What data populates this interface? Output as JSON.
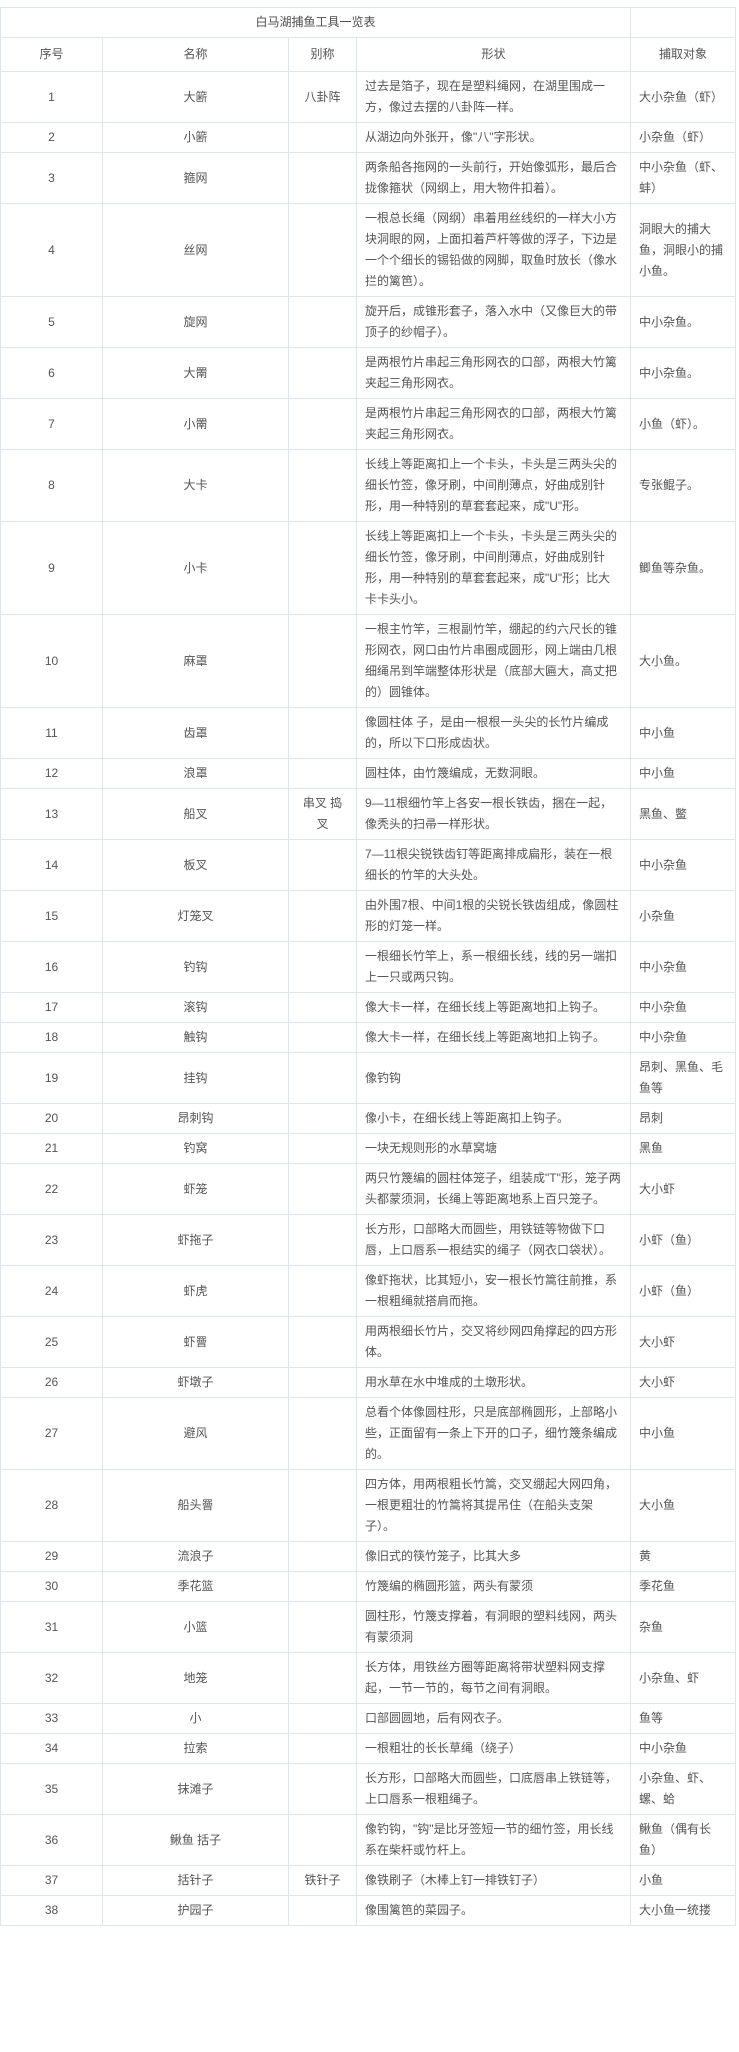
{
  "table": {
    "title": "白马湖捕鱼工具一览表",
    "columns": [
      "序号",
      "名称",
      "别称",
      "形状",
      "捕取对象"
    ],
    "rows": [
      {
        "no": "1",
        "name": "大簖",
        "alias": "八卦阵",
        "shape": "过去是箔子，现在是塑料绳网，在湖里围成一方，像过去摆的八卦阵一样。",
        "target": "大小杂鱼（虾）"
      },
      {
        "no": "2",
        "name": "小簖",
        "alias": "",
        "shape": "从湖边向外张开，像\"八\"字形状。",
        "target": "小杂鱼（虾）"
      },
      {
        "no": "3",
        "name": "箍网",
        "alias": "",
        "shape": "两条船各拖网的一头前行，开始像弧形，最后合拢像箍状（网纲上，用大物件扣着）。",
        "target": "中小杂鱼（虾、蚌）"
      },
      {
        "no": "4",
        "name": "丝网",
        "alias": "",
        "shape": "一根总长绳（网纲）串着用丝线织的一样大小方块洞眼的网，上面扣着芦杆等做的浮子，下边是一个个细长的锡铅做的网脚，取鱼时放长（像水拦的篱笆）。",
        "target": "洞眼大的捕大鱼，洞眼小的捕小鱼。"
      },
      {
        "no": "5",
        "name": "旋网",
        "alias": "",
        "shape": "旋开后，成锥形套子，落入水中（又像巨大的带顶子的纱帽子）。",
        "target": "中小杂鱼。"
      },
      {
        "no": "6",
        "name": "大罱",
        "alias": "",
        "shape": "是两根竹片串起三角形网衣的口部，两根大竹篱夹起三角形网衣。",
        "target": "中小杂鱼。"
      },
      {
        "no": "7",
        "name": "小罱",
        "alias": "",
        "shape": "是两根竹片串起三角形网衣的口部，两根大竹篱夹起三角形网衣。",
        "target": "小鱼（虾）。"
      },
      {
        "no": "8",
        "name": "大卡",
        "alias": "",
        "shape": "长线上等距离扣上一个卡头，卡头是三两头尖的细长竹签，像牙刷，中间削薄点，好曲成别针形，用一种特别的草套套起来，成\"U\"形。",
        "target": "专张鲲子。"
      },
      {
        "no": "9",
        "name": "小卡",
        "alias": "",
        "shape": "长线上等距离扣上一个卡头，卡头是三两头尖的细长竹签，像牙刷，中间削薄点，好曲成别针形，用一种特别的草套套起来，成\"U\"形；比大卡卡头小。",
        "target": "鲫鱼等杂鱼。"
      },
      {
        "no": "10",
        "name": "麻罩",
        "alias": "",
        "shape": "一根主竹竿，三根副竹竿，绷起的约六尺长的锥形网衣，网口由竹片串圈成圆形，网上端由几根细绳吊到竿端整体形状是（底部大匾大，高丈把的）圆锥体。",
        "target": "大小鱼。"
      },
      {
        "no": "11",
        "name": "齿罩",
        "alias": "",
        "shape": "像圆柱体 子，是由一根根一头尖的长竹片编成的，所以下口形成齿状。",
        "target": "中小鱼"
      },
      {
        "no": "12",
        "name": "浪罩",
        "alias": "",
        "shape": "圆柱体，由竹篾编成，无数洞眼。",
        "target": "中小鱼"
      },
      {
        "no": "13",
        "name": "船叉",
        "alias": "串叉 捣叉",
        "shape": "9—11根细竹竿上各安一根长铁齿，捆在一起，像秃头的扫帚一样形状。",
        "target": "黑鱼、鳖"
      },
      {
        "no": "14",
        "name": "板叉",
        "alias": "",
        "shape": "7—11根尖锐铁齿钉等距离排成扁形，装在一根细长的竹竿的大头处。",
        "target": "中小杂鱼"
      },
      {
        "no": "15",
        "name": "灯笼叉",
        "alias": "",
        "shape": "由外围7根、中间1根的尖锐长铁齿组成，像圆柱形的灯笼一样。",
        "target": "小杂鱼"
      },
      {
        "no": "16",
        "name": "钓钩",
        "alias": "",
        "shape": "一根细长竹竿上，系一根细长线，线的另一端扣上一只或两只钩。",
        "target": "中小杂鱼"
      },
      {
        "no": "17",
        "name": "滚钩",
        "alias": "",
        "shape": "像大卡一样，在细长线上等距离地扣上钩子。",
        "target": "中小杂鱼"
      },
      {
        "no": "18",
        "name": "触钩",
        "alias": "",
        "shape": "像大卡一样，在细长线上等距离地扣上钩子。",
        "target": "中小杂鱼"
      },
      {
        "no": "19",
        "name": "挂钩",
        "alias": "",
        "shape": "像钓钩",
        "target": "昂刺、黑鱼、毛鱼等"
      },
      {
        "no": "20",
        "name": "昂刺钩",
        "alias": "",
        "shape": "像小卡，在细长线上等距离扣上钩子。",
        "target": "昂刺"
      },
      {
        "no": "21",
        "name": "钓窝",
        "alias": "",
        "shape": "一块无规则形的水草窝塘",
        "target": "黑鱼"
      },
      {
        "no": "22",
        "name": "虾笼",
        "alias": "",
        "shape": "两只竹篾编的圆柱体笼子，组装成\"T\"形，笼子两头都蒙须洞，长绳上等距离地系上百只笼子。",
        "target": "大小虾"
      },
      {
        "no": "23",
        "name": "虾拖子",
        "alias": "",
        "shape": "长方形，口部略大而圆些，用铁链等物做下口唇，上口唇系一根结实的绳子（网衣口袋状）。",
        "target": "小虾（鱼）"
      },
      {
        "no": "24",
        "name": "虾虎",
        "alias": "",
        "shape": "像虾拖状，比其短小，安一根长竹篙往前推，系一根粗绳就搭肩而拖。",
        "target": "小虾（鱼）"
      },
      {
        "no": "25",
        "name": "虾罾",
        "alias": "",
        "shape": "用两根细长竹片，交叉将纱网四角撑起的四方形体。",
        "target": "大小虾"
      },
      {
        "no": "26",
        "name": "虾墩子",
        "alias": "",
        "shape": "用水草在水中堆成的土墩形状。",
        "target": "大小虾"
      },
      {
        "no": "27",
        "name": "避风",
        "alias": "",
        "shape": "总看个体像圆柱形，只是底部椭圆形，上部略小些，正面留有一条上下开的口子，细竹篾条编成的。",
        "target": "中小鱼"
      },
      {
        "no": "28",
        "name": "船头罾",
        "alias": "",
        "shape": "四方体，用两根粗长竹篙，交叉绷起大网四角，一根更粗壮的竹篙将其提吊住（在船头支架子）。",
        "target": "大小鱼"
      },
      {
        "no": "29",
        "name": "流浪子",
        "alias": "",
        "shape": "像旧式的筷竹笼子，比其大多",
        "target": "黄"
      },
      {
        "no": "30",
        "name": "季花篮",
        "alias": "",
        "shape": "竹篾编的椭圆形篮，两头有蒙须",
        "target": "季花鱼"
      },
      {
        "no": "31",
        "name": "小篮",
        "alias": "",
        "shape": "圆柱形，竹篾支撑着，有洞眼的塑料线网，两头有蒙须洞",
        "target": "杂鱼"
      },
      {
        "no": "32",
        "name": "地笼",
        "alias": "",
        "shape": "长方体，用铁丝方圈等距离将带状塑料网支撑起，一节一节的，每节之间有洞眼。",
        "target": "小杂鱼、虾"
      },
      {
        "no": "33",
        "name": "小",
        "alias": "",
        "shape": "口部圆圆地，后有网衣子。",
        "target": "鱼等"
      },
      {
        "no": "34",
        "name": "拉索",
        "alias": "",
        "shape": "一根粗壮的长长草绳（绕子）",
        "target": "中小杂鱼"
      },
      {
        "no": "35",
        "name": "抹滩子",
        "alias": "",
        "shape": "长方形，口部略大而圆些，口底唇串上铁链等，上口唇系一根粗绳子。",
        "target": "小杂鱼、虾、螺、蛤"
      },
      {
        "no": "36",
        "name": "鳅鱼 括子",
        "alias": "",
        "shape": "像钓钩，\"钩\"是比牙签短一节的细竹签，用长线系在柴杆或竹杆上。",
        "target": "鳅鱼（偶有长鱼）"
      },
      {
        "no": "37",
        "name": "括针子",
        "alias": "铁针子",
        "shape": "像铁刷子（木棒上钉一排铁钉子）",
        "target": "小鱼"
      },
      {
        "no": "38",
        "name": "护园子",
        "alias": "",
        "shape": "像围篱笆的菜园子。",
        "target": "大小鱼一统搂"
      }
    ]
  }
}
